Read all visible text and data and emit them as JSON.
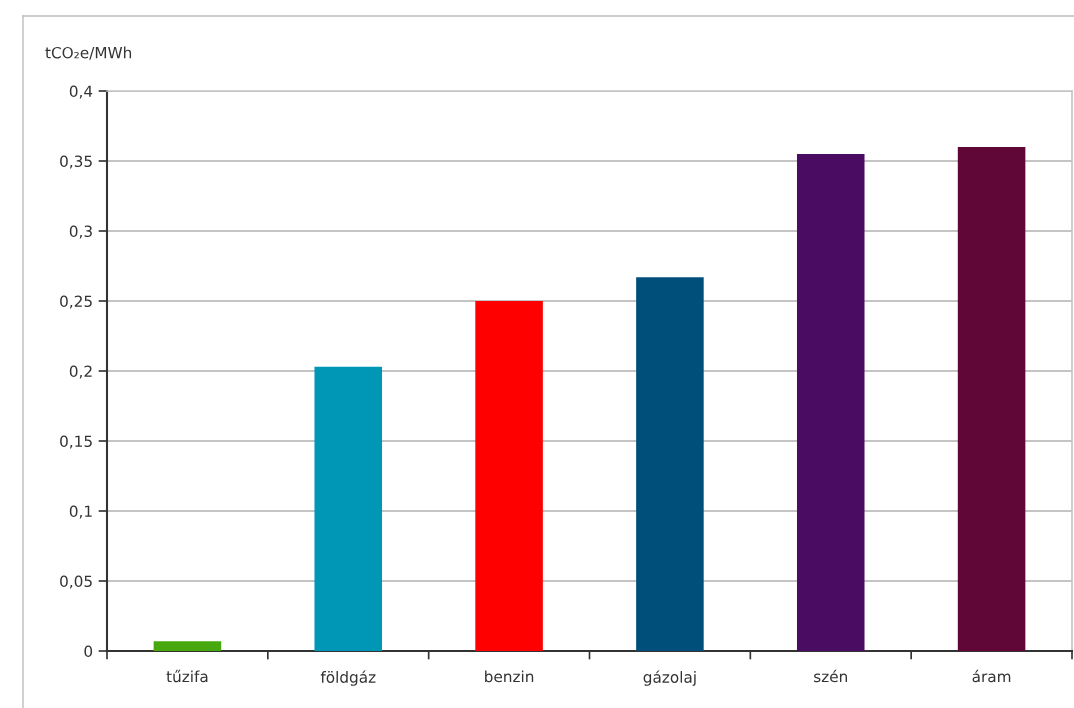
{
  "chart_data": {
    "type": "bar",
    "ylabel": "tCO₂e/MWh",
    "categories": [
      "tűzifa",
      "földgáz",
      "benzin",
      "gázolaj",
      "szén",
      "áram"
    ],
    "values": [
      0.007,
      0.203,
      0.25,
      0.267,
      0.355,
      0.36
    ],
    "colors": [
      "#46a80e",
      "#0097b7",
      "#ff0000",
      "#004f7a",
      "#4a0c63",
      "#600738"
    ],
    "ylim": [
      0,
      0.4
    ],
    "yticks": [
      0,
      {
        "value": 0.05,
        "label": "0,05"
      },
      {
        "value": 0.1,
        "label": "0,1"
      },
      {
        "value": 0.15,
        "label": "0,15"
      },
      {
        "value": 0.2,
        "label": "0,2"
      },
      {
        "value": 0.25,
        "label": "0,25"
      },
      {
        "value": 0.3,
        "label": "0,3"
      },
      {
        "value": 0.35,
        "label": "0,35"
      },
      {
        "value": 0.4,
        "label": "0,4"
      }
    ],
    "grid": "y"
  }
}
